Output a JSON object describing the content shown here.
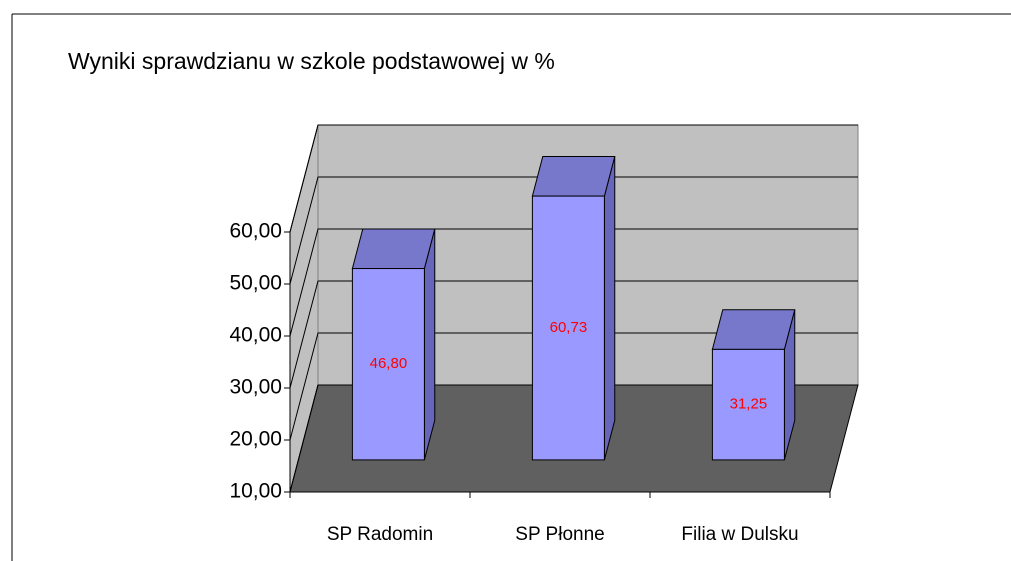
{
  "chart_data": {
    "type": "bar3d",
    "title": "Wyniki sprawdzianu w szkole podstawowej w %",
    "categories": [
      "SP Radomin",
      "SP Płonne",
      "Filia w Dulsku"
    ],
    "values": [
      46.8,
      60.73,
      31.25
    ],
    "value_labels": [
      "46,80",
      "60,73",
      "31,25"
    ],
    "color": "#9999ff",
    "label_color": "#ff0000",
    "ylim": [
      10,
      60
    ],
    "yticks": [
      {
        "value": 10,
        "label": "10,00"
      },
      {
        "value": 20,
        "label": "20,00"
      },
      {
        "value": 30,
        "label": "30,00"
      },
      {
        "value": 40,
        "label": "40,00"
      },
      {
        "value": 50,
        "label": "50,00"
      },
      {
        "value": 60,
        "label": "60,00"
      }
    ],
    "grid": true
  }
}
